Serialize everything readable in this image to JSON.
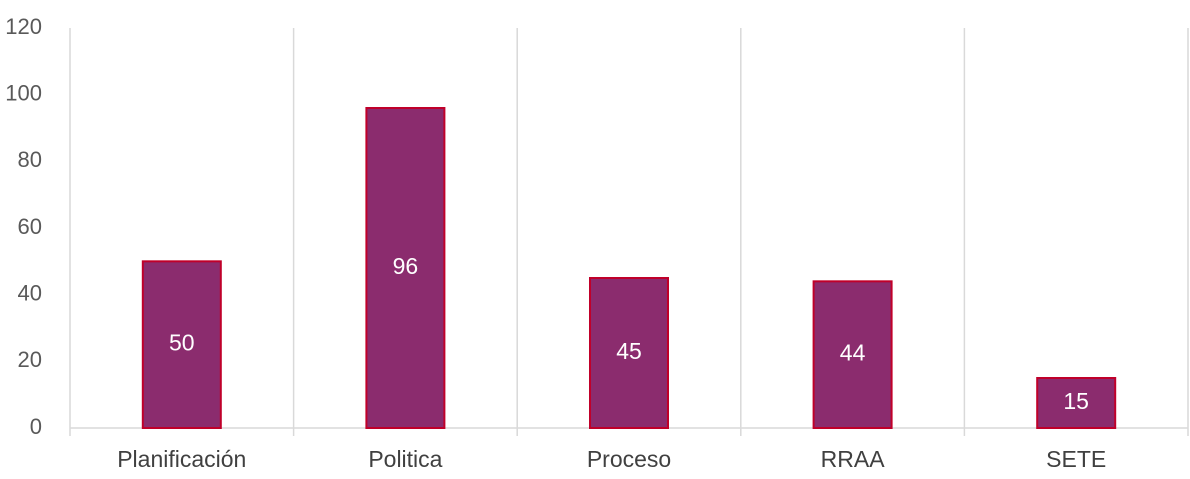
{
  "chart_data": {
    "type": "bar",
    "categories": [
      "Planificación",
      "Politica",
      "Proceso",
      "RRAA",
      "SETE"
    ],
    "values": [
      50,
      96,
      45,
      44,
      15
    ],
    "data_labels": [
      "50",
      "96",
      "45",
      "44",
      "15"
    ],
    "y_ticks": [
      "0",
      "20",
      "40",
      "60",
      "80",
      "100",
      "120"
    ],
    "ylim": [
      0,
      120
    ],
    "title": "",
    "xlabel": "",
    "ylabel": "",
    "grid": "vertical category separators",
    "legend": "none",
    "colors": {
      "bar_fill": "#8B2C6E",
      "bar_stroke": "#C0002A",
      "grid": "#D9D9D9",
      "axis_text": "#595959"
    }
  }
}
